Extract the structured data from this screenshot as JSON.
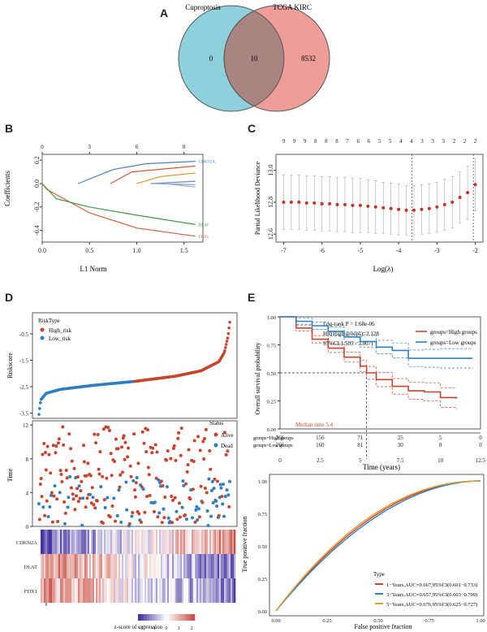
{
  "panels": {
    "a": "A",
    "b": "B",
    "c": "C",
    "d": "D",
    "e": "E"
  },
  "venn": {
    "left_label": "Cuproptosis",
    "right_label": "TCGA KIRC",
    "left_only": "0",
    "overlap": "10",
    "right_only": "8532",
    "colors": {
      "left": "#8fd0dd",
      "right": "#ee9d98",
      "overlap": "#a98480"
    }
  },
  "chart_data": [
    {
      "id": "lasso-coefficients",
      "type": "line",
      "xlabel": "L1 Norm",
      "ylabel": "Coefficients",
      "xlim": [
        0,
        1.7
      ],
      "ylim": [
        -0.5,
        0.25
      ],
      "xticks": [
        "0.0",
        "0.5",
        "1.0",
        "1.5"
      ],
      "yticks": [
        "-0.4",
        "-0.2",
        "0.0",
        "0.2"
      ],
      "top_ticks": [
        {
          "x": 0,
          "label": "0"
        },
        {
          "x": 0.5,
          "label": "3"
        },
        {
          "x": 1.0,
          "label": "6"
        },
        {
          "x": 1.5,
          "label": "8"
        }
      ],
      "series": [
        {
          "name": "FDX1",
          "color": "#d6603a",
          "points": [
            [
              0,
              0
            ],
            [
              0.05,
              -0.05
            ],
            [
              0.5,
              -0.25
            ],
            [
              1.0,
              -0.38
            ],
            [
              1.62,
              -0.45
            ]
          ]
        },
        {
          "name": "DLAT",
          "color": "#3f9a4a",
          "points": [
            [
              0,
              0
            ],
            [
              0.15,
              -0.13
            ],
            [
              0.5,
              -0.2
            ],
            [
              1.0,
              -0.27
            ],
            [
              1.62,
              -0.35
            ]
          ]
        },
        {
          "name": "CDKN2A",
          "color": "#4a7ec9",
          "points": [
            [
              0.38,
              0
            ],
            [
              0.75,
              0.12
            ],
            [
              1.1,
              0.17
            ],
            [
              1.62,
              0.19
            ]
          ]
        },
        {
          "name": "",
          "color": "#d65a2a",
          "points": [
            [
              0.72,
              0
            ],
            [
              0.95,
              0.1
            ],
            [
              1.62,
              0.15
            ]
          ]
        },
        {
          "name": "",
          "color": "#e09a3a",
          "points": [
            [
              1.0,
              0
            ],
            [
              1.25,
              0.06
            ],
            [
              1.62,
              0.09
            ]
          ]
        },
        {
          "name": "",
          "color": "#7f7fdc",
          "points": [
            [
              1.15,
              0
            ],
            [
              1.62,
              0.02
            ]
          ]
        },
        {
          "name": "",
          "color": "#6fb0d0",
          "points": [
            [
              1.2,
              0
            ],
            [
              1.62,
              -0.01
            ]
          ]
        },
        {
          "name": "",
          "color": "#9aa9d4",
          "points": [
            [
              1.3,
              0
            ],
            [
              1.62,
              -0.03
            ]
          ]
        }
      ]
    },
    {
      "id": "lasso-cv",
      "type": "scatter",
      "xlabel": "Log(λ)",
      "ylabel": "Partial Likelihood Deviance",
      "xlim": [
        -7.2,
        -1.8
      ],
      "ylim": [
        12.55,
        13.1
      ],
      "xticks": [
        "-7",
        "-6",
        "-5",
        "-4",
        "-3",
        "-2"
      ],
      "yticks": [
        "12.6",
        "12.8",
        "13.0"
      ],
      "top_ticks": [
        "9",
        "9",
        "9",
        "8",
        "8",
        "8",
        "7",
        "6",
        "6",
        "5",
        "5",
        "4",
        "4",
        "3",
        "3",
        "3",
        "2",
        "2",
        "2"
      ],
      "lambda_min": -3.65,
      "lambda_1se": -2.05,
      "x": [
        -7.0,
        -6.8,
        -6.6,
        -6.4,
        -6.2,
        -6.0,
        -5.8,
        -5.6,
        -5.4,
        -5.2,
        -5.0,
        -4.8,
        -4.6,
        -4.4,
        -4.2,
        -4.0,
        -3.8,
        -3.6,
        -3.4,
        -3.2,
        -3.0,
        -2.8,
        -2.6,
        -2.4,
        -2.2,
        -2.0
      ],
      "deviance": [
        12.8,
        12.8,
        12.8,
        12.795,
        12.795,
        12.79,
        12.79,
        12.785,
        12.785,
        12.78,
        12.78,
        12.775,
        12.77,
        12.765,
        12.76,
        12.755,
        12.75,
        12.75,
        12.755,
        12.76,
        12.77,
        12.785,
        12.8,
        12.83,
        12.86,
        12.91
      ],
      "error": [
        0.17,
        0.17,
        0.17,
        0.17,
        0.17,
        0.17,
        0.17,
        0.17,
        0.17,
        0.17,
        0.17,
        0.165,
        0.165,
        0.16,
        0.16,
        0.16,
        0.155,
        0.155,
        0.155,
        0.155,
        0.155,
        0.16,
        0.16,
        0.16,
        0.165,
        0.165
      ]
    },
    {
      "id": "risk-score",
      "type": "scatter",
      "ylabel": "Riskscore",
      "ylim": [
        -3.7,
        0.3
      ],
      "yticks": [
        "-3.5",
        "-3.0",
        "-2.5",
        "-2.0",
        "-1.5",
        "-1.0",
        "-0.5",
        "0.0"
      ],
      "legend_title": "RiskType",
      "legend": [
        {
          "name": "High_risk",
          "color": "#c8442e"
        },
        {
          "name": "Low_risk",
          "color": "#2f7fc1"
        }
      ],
      "n_patients": 532,
      "split_index": 266,
      "curve": [
        [
          0,
          -3.55
        ],
        [
          5,
          -3.0
        ],
        [
          20,
          -2.75
        ],
        [
          60,
          -2.6
        ],
        [
          150,
          -2.45
        ],
        [
          266,
          -2.3
        ],
        [
          380,
          -2.1
        ],
        [
          450,
          -1.9
        ],
        [
          500,
          -1.55
        ],
        [
          515,
          -1.2
        ],
        [
          525,
          -0.6
        ],
        [
          531,
          0.05
        ]
      ]
    },
    {
      "id": "survival-status",
      "type": "scatter",
      "ylabel": "Time",
      "ylim": [
        0,
        12.5
      ],
      "yticks": [
        "0",
        "4",
        "8",
        "12"
      ],
      "legend_title": "Status",
      "legend": [
        {
          "name": "Alive",
          "color": "#c8442e"
        },
        {
          "name": "Dead",
          "color": "#2f7fc1"
        }
      ]
    },
    {
      "id": "expression-heatmap",
      "type": "heatmap",
      "genes": [
        "CDKN2A",
        "DLAT",
        "FDX1"
      ],
      "colorbar_label": "z-score of expression",
      "colorbar_ticks": [
        "-2",
        "-1",
        "0",
        "1",
        "2"
      ]
    },
    {
      "id": "km-survival",
      "type": "line",
      "xlabel": "Time (years)",
      "ylabel": "Overall survival probability",
      "xlim": [
        0,
        12.5
      ],
      "ylim": [
        0,
        1
      ],
      "xticks": [
        "0",
        "2.5",
        "5",
        "7.5",
        "10",
        "12.5"
      ],
      "yticks": [
        "0.00",
        "0.25",
        "0.50",
        "0.75",
        "1.00"
      ],
      "annotations": [
        "Log-rank P = 1.68e-06",
        "HR(High groups)=2.128",
        "95%CI:1.505 - 3.007)",
        "Median time 5.4"
      ],
      "legend": [
        {
          "name": "groups=High groups",
          "color": "#c8442e"
        },
        {
          "name": "groups=Low groups",
          "color": "#2f7fc1"
        }
      ],
      "series": [
        {
          "name": "groups=High groups",
          "color": "#c8442e",
          "points": [
            [
              0,
              1
            ],
            [
              1,
              0.9
            ],
            [
              2,
              0.8
            ],
            [
              3,
              0.72
            ],
            [
              4,
              0.64
            ],
            [
              5,
              0.56
            ],
            [
              5.4,
              0.5
            ],
            [
              6,
              0.44
            ],
            [
              7,
              0.38
            ],
            [
              8,
              0.34
            ],
            [
              9,
              0.33
            ],
            [
              10,
              0.28
            ],
            [
              11,
              0.27
            ]
          ]
        },
        {
          "name": "groups=Low groups",
          "color": "#2f7fc1",
          "points": [
            [
              0,
              1
            ],
            [
              1,
              0.96
            ],
            [
              2,
              0.92
            ],
            [
              3,
              0.87
            ],
            [
              4,
              0.82
            ],
            [
              5,
              0.78
            ],
            [
              6,
              0.73
            ],
            [
              7,
              0.7
            ],
            [
              8,
              0.63
            ],
            [
              9,
              0.63
            ],
            [
              10,
              0.63
            ],
            [
              12,
              0.63
            ]
          ]
        }
      ],
      "risk_table": {
        "rows": [
          {
            "label": "groups=High groups",
            "values": [
              "266",
              "156",
              "71",
              "25",
              "5",
              "0"
            ]
          },
          {
            "label": "groups=Low groups",
            "values": [
              "266",
              "160",
              "81",
              "30",
              "8",
              "0"
            ]
          }
        ]
      }
    },
    {
      "id": "roc-curve",
      "type": "line",
      "xlabel": "False positive fraction",
      "ylabel": "True positive fraction",
      "xlim": [
        0,
        1
      ],
      "ylim": [
        0,
        1
      ],
      "xticks": [
        "0.00",
        "0.25",
        "0.50",
        "0.75",
        "1.00"
      ],
      "yticks": [
        "0.00",
        "0.25",
        "0.50",
        "0.75",
        "1.00"
      ],
      "legend_title": "Type",
      "series": [
        {
          "name": "1−Years,AUC=0.667,95%CI(0.601−0.733)",
          "color": "#c8442e",
          "auc": 0.667
        },
        {
          "name": "3−Years,AUC=0.657,95%CI(0.603−0.709)",
          "color": "#2f7fc1",
          "auc": 0.657
        },
        {
          "name": "5−Years,AUC=0.676,95%CI(0.625−0.727)",
          "color": "#e69a2a",
          "auc": 0.676
        }
      ]
    }
  ]
}
